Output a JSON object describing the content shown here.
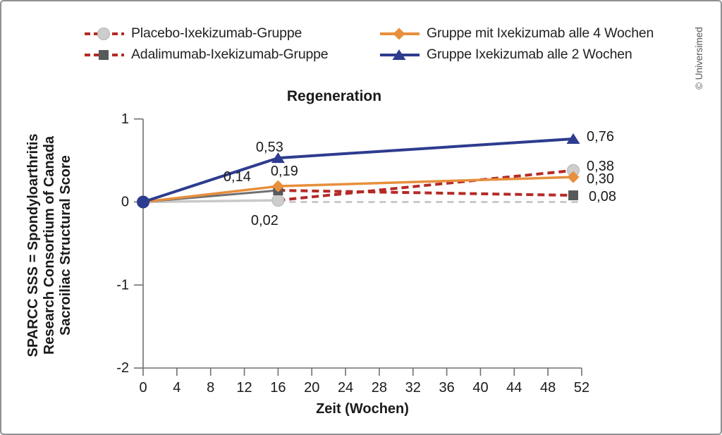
{
  "copyright": "© Universimed",
  "legend": {
    "position": "top",
    "items": [
      {
        "id": "placebo",
        "label": "Placebo-Ixekizumab-Gruppe",
        "marker": "circle",
        "marker_color": "#cdcdcd",
        "marker_edge": "#b5b5b5",
        "line_style": "dashed",
        "line_color": "#b42a26"
      },
      {
        "id": "adalimumab",
        "label": "Adalimumab-Ixekizumab-Gruppe",
        "marker": "square",
        "marker_color": "#58595b",
        "marker_edge": "",
        "line_style": "dashed",
        "line_color": "#b42a26"
      },
      {
        "id": "q4w",
        "label": "Gruppe mit Ixekizumab alle 4 Wochen",
        "marker": "diamond",
        "marker_color": "#e78f3c",
        "marker_edge": "",
        "line_style": "solid",
        "line_color": "#e78f3c"
      },
      {
        "id": "q2w",
        "label": "Gruppe Ixekizumab alle 2 Wochen",
        "marker": "triangle",
        "marker_color": "#2d3c8e",
        "marker_edge": "",
        "line_style": "solid",
        "line_color": "#2d3c8e"
      }
    ]
  },
  "chart_data": {
    "type": "line",
    "title": "Regeneration",
    "xlabel": "Zeit (Wochen)",
    "ylabel_lines": [
      "SPARCC SSS = Spondyloarthritis",
      "Research Consortium of Canada",
      "Sacroiliac Structural Score"
    ],
    "xlim": [
      0,
      52
    ],
    "ylim": [
      -2,
      1
    ],
    "xticks": [
      0,
      4,
      8,
      12,
      16,
      20,
      24,
      28,
      32,
      36,
      40,
      44,
      48,
      52
    ],
    "yticks": [
      1,
      0,
      -1,
      -2
    ],
    "grid": false,
    "decimal_style": "comma",
    "series": [
      {
        "id": "placebo",
        "name": "Placebo-Ixekizumab-Gruppe",
        "marker": "circle",
        "marker_color": "#cdcdcd",
        "marker_edge": "#b5b5b5",
        "points": [
          {
            "x": 0,
            "y": 0,
            "label": ""
          },
          {
            "x": 16,
            "y": 0.02,
            "label": "0,02"
          },
          {
            "x": 51,
            "y": 0.38,
            "label": "0,38"
          }
        ],
        "segments": [
          {
            "style": "solid",
            "color": "#c9c9c9",
            "width": 3.5
          },
          {
            "style": "dashed",
            "color": "#b42a26",
            "width": 4
          }
        ]
      },
      {
        "id": "adalimumab",
        "name": "Adalimumab-Ixekizumab-Gruppe",
        "marker": "square",
        "marker_color": "#58595b",
        "marker_edge": "",
        "points": [
          {
            "x": 0,
            "y": 0,
            "label": ""
          },
          {
            "x": 16,
            "y": 0.14,
            "label": "0,14"
          },
          {
            "x": 51,
            "y": 0.08,
            "label": "0,08"
          }
        ],
        "segments": [
          {
            "style": "solid",
            "color": "#6f7072",
            "width": 3
          },
          {
            "style": "dashed",
            "color": "#b42a26",
            "width": 4
          }
        ]
      },
      {
        "id": "q4w",
        "name": "Gruppe mit Ixekizumab alle 4 Wochen",
        "marker": "diamond",
        "marker_color": "#e78f3c",
        "marker_edge": "",
        "points": [
          {
            "x": 0,
            "y": 0,
            "label": ""
          },
          {
            "x": 16,
            "y": 0.19,
            "label": "0,19"
          },
          {
            "x": 51,
            "y": 0.3,
            "label": "0,30"
          }
        ],
        "segments": [
          {
            "style": "solid",
            "color": "#e78f3c",
            "width": 3.5
          },
          {
            "style": "solid",
            "color": "#e78f3c",
            "width": 3.5
          }
        ]
      },
      {
        "id": "q2w",
        "name": "Gruppe Ixekizumab alle 2 Wochen",
        "marker": "triangle",
        "marker_color": "#2d3c8e",
        "marker_edge": "",
        "points": [
          {
            "x": 0,
            "y": 0,
            "label": ""
          },
          {
            "x": 16,
            "y": 0.53,
            "label": "0,53"
          },
          {
            "x": 51,
            "y": 0.76,
            "label": "0,76"
          }
        ],
        "segments": [
          {
            "style": "solid",
            "color": "#2d3c8e",
            "width": 4
          },
          {
            "style": "solid",
            "color": "#2d3c8e",
            "width": 4
          }
        ]
      }
    ],
    "reference_line": {
      "name": "zero-baseline",
      "style": "dashed",
      "color": "#c9c9c9",
      "width": 3,
      "x": [
        16,
        52
      ],
      "y": [
        0,
        0
      ]
    },
    "origin_marker": {
      "marker": "circle",
      "color": "#2d3c8e",
      "x": 0,
      "y": 0
    }
  }
}
